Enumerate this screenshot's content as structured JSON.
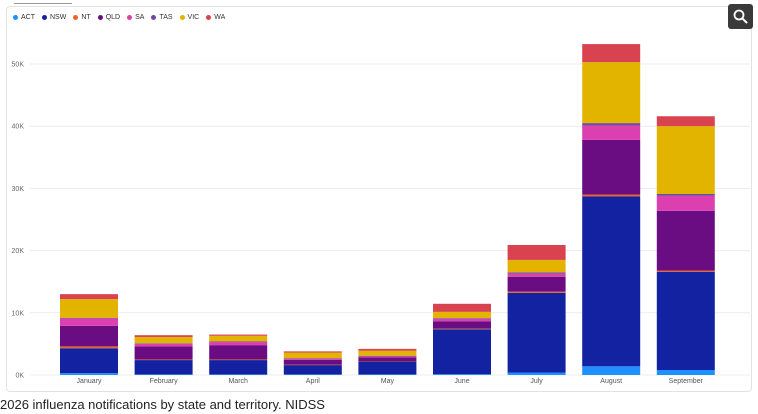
{
  "caption": "2026 influenza notifications by state and territory. NIDSS",
  "chart_data": {
    "type": "bar",
    "stacked": true,
    "categories": [
      "January",
      "February",
      "March",
      "April",
      "May",
      "June",
      "July",
      "August",
      "September"
    ],
    "series": [
      {
        "name": "ACT",
        "color": "#1e90ff",
        "values": [
          300,
          100,
          100,
          100,
          100,
          150,
          400,
          1400,
          800
        ]
      },
      {
        "name": "NSW",
        "color": "#1322a0",
        "values": [
          4000,
          2300,
          2300,
          1500,
          2100,
          7200,
          12800,
          27300,
          15800
        ]
      },
      {
        "name": "NT",
        "color": "#e8642a",
        "values": [
          300,
          100,
          100,
          50,
          50,
          100,
          200,
          300,
          200
        ]
      },
      {
        "name": "QLD",
        "color": "#6a0d83",
        "values": [
          3300,
          2100,
          2300,
          800,
          600,
          1200,
          2400,
          8800,
          9600
        ]
      },
      {
        "name": "SA",
        "color": "#db3fb0",
        "values": [
          1200,
          400,
          500,
          200,
          200,
          400,
          500,
          2300,
          2400
        ]
      },
      {
        "name": "TAS",
        "color": "#6f4ba0",
        "values": [
          100,
          100,
          100,
          50,
          50,
          100,
          200,
          400,
          300
        ]
      },
      {
        "name": "VIC",
        "color": "#e2b400",
        "values": [
          3000,
          1000,
          900,
          900,
          800,
          1000,
          2000,
          9800,
          10900
        ]
      },
      {
        "name": "WA",
        "color": "#d9434f",
        "values": [
          800,
          300,
          200,
          200,
          300,
          1300,
          2400,
          2900,
          1600
        ]
      }
    ],
    "yticks": [
      "0K",
      "10K",
      "20K",
      "30K",
      "40K",
      "50K"
    ],
    "ylim": [
      0,
      55000
    ],
    "grid": true,
    "legend_position": "top-left"
  },
  "icons": {
    "search": "search-icon"
  }
}
